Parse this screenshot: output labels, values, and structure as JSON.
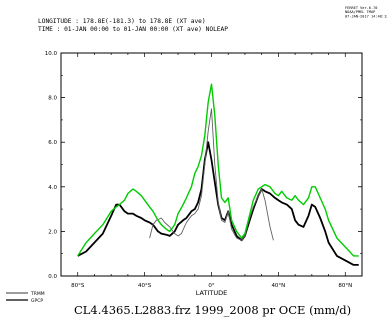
{
  "header": {
    "stamp_lines": [
      "FERRET Ver.6.70",
      "NOAA/PMEL TMAP",
      "07-JAN-2017 14:48:12"
    ],
    "meta_lines": [
      "LONGITUDE : 178.8E(-181.3) to 178.8E (XT ave)",
      "TIME : 01-JAN 00:00 to 01-JAN 00:00 (XT ave) NOLEAP"
    ]
  },
  "footer": {
    "caption": "CL4.4365.L2883.frz 1999_2008 pr OCE (mm/d)"
  },
  "chart_data": {
    "type": "line",
    "xlabel": "LATITUDE",
    "ylabel": "",
    "xlim": [
      -90,
      90
    ],
    "ylim": [
      0,
      10
    ],
    "x_ticks": [
      {
        "value": -80,
        "label": "80°S"
      },
      {
        "value": -40,
        "label": "40°S"
      },
      {
        "value": 0,
        "label": "0°"
      },
      {
        "value": 40,
        "label": "40°N"
      },
      {
        "value": 80,
        "label": "80°N"
      }
    ],
    "y_ticks": [
      {
        "value": 0,
        "label": "0.0"
      },
      {
        "value": 2,
        "label": "2.0"
      },
      {
        "value": 4,
        "label": "4.0"
      },
      {
        "value": 6,
        "label": "6.0"
      },
      {
        "value": 8,
        "label": "8.0"
      },
      {
        "value": 10,
        "label": "10.0"
      }
    ],
    "grid": false,
    "legend_position": "bottom-left",
    "series": [
      {
        "name": "GPCP",
        "color": "#000000",
        "width": 1.8,
        "x": [
          -80,
          -75,
          -70,
          -65,
          -60,
          -57,
          -55,
          -52,
          -50,
          -47,
          -45,
          -42,
          -40,
          -37,
          -35,
          -32,
          -30,
          -27,
          -25,
          -22,
          -20,
          -17,
          -15,
          -12,
          -10,
          -8,
          -6,
          -4,
          -2,
          0,
          2,
          4,
          6,
          8,
          10,
          12,
          15,
          18,
          20,
          22,
          25,
          28,
          30,
          32,
          35,
          38,
          40,
          42,
          45,
          48,
          50,
          52,
          55,
          58,
          60,
          62,
          65,
          68,
          70,
          75,
          80,
          85,
          88
        ],
        "y": [
          0.9,
          1.1,
          1.5,
          1.9,
          2.7,
          3.2,
          3.2,
          2.9,
          2.8,
          2.8,
          2.7,
          2.6,
          2.5,
          2.4,
          2.3,
          2.0,
          1.9,
          1.85,
          1.8,
          2.0,
          2.3,
          2.5,
          2.6,
          2.9,
          3.0,
          3.3,
          3.9,
          5.2,
          6.0,
          5.2,
          4.2,
          3.2,
          2.6,
          2.5,
          2.9,
          2.3,
          1.8,
          1.6,
          1.8,
          2.3,
          3.0,
          3.6,
          3.9,
          3.8,
          3.7,
          3.5,
          3.4,
          3.3,
          3.2,
          3.0,
          2.5,
          2.3,
          2.2,
          2.7,
          3.2,
          3.1,
          2.6,
          2.0,
          1.5,
          0.9,
          0.7,
          0.5,
          0.5
        ]
      },
      {
        "name": "TRMM",
        "color": "#606060",
        "width": 0.9,
        "x": [
          -37,
          -35,
          -33,
          -30,
          -28,
          -25,
          -22,
          -20,
          -18,
          -15,
          -12,
          -10,
          -8,
          -6,
          -4,
          -2,
          0,
          2,
          4,
          6,
          8,
          10,
          12,
          15,
          18,
          20,
          22,
          25,
          28,
          30,
          32,
          35,
          37
        ],
        "y": [
          1.7,
          2.3,
          2.5,
          2.6,
          2.4,
          2.2,
          1.9,
          1.8,
          1.9,
          2.4,
          2.7,
          2.8,
          3.0,
          3.6,
          5.0,
          6.5,
          7.5,
          5.0,
          3.3,
          2.5,
          2.4,
          2.9,
          2.1,
          1.7,
          1.6,
          1.8,
          2.4,
          3.1,
          3.6,
          3.9,
          3.4,
          2.2,
          1.6
        ]
      },
      {
        "name": "CL4.4365.L2883.frz",
        "color": "#00cc00",
        "width": 1.4,
        "x": [
          -80,
          -75,
          -70,
          -65,
          -60,
          -57,
          -55,
          -52,
          -50,
          -47,
          -45,
          -42,
          -40,
          -37,
          -35,
          -32,
          -30,
          -27,
          -25,
          -22,
          -20,
          -17,
          -15,
          -12,
          -10,
          -8,
          -6,
          -4,
          -2,
          0,
          2,
          4,
          6,
          8,
          10,
          12,
          15,
          18,
          20,
          22,
          25,
          28,
          30,
          32,
          35,
          38,
          40,
          42,
          45,
          48,
          50,
          52,
          55,
          58,
          60,
          62,
          65,
          68,
          70,
          75,
          80,
          85,
          88
        ],
        "y": [
          0.9,
          1.5,
          1.9,
          2.3,
          2.9,
          3.1,
          3.2,
          3.4,
          3.7,
          3.9,
          3.8,
          3.6,
          3.4,
          3.1,
          2.9,
          2.5,
          2.3,
          2.1,
          2.0,
          2.3,
          2.8,
          3.2,
          3.5,
          4.0,
          4.6,
          4.9,
          5.4,
          6.3,
          7.8,
          8.6,
          7.2,
          5.0,
          3.5,
          3.3,
          3.5,
          2.5,
          2.0,
          1.7,
          1.9,
          2.5,
          3.4,
          3.9,
          4.0,
          4.1,
          4.0,
          3.7,
          3.6,
          3.8,
          3.5,
          3.4,
          3.6,
          3.4,
          3.2,
          3.5,
          4.0,
          4.0,
          3.5,
          3.0,
          2.5,
          1.7,
          1.3,
          0.9,
          0.9
        ]
      }
    ],
    "legend": [
      {
        "label": "TRMM",
        "color": "#606060"
      },
      {
        "label": "GPCP",
        "color": "#000000"
      }
    ]
  }
}
